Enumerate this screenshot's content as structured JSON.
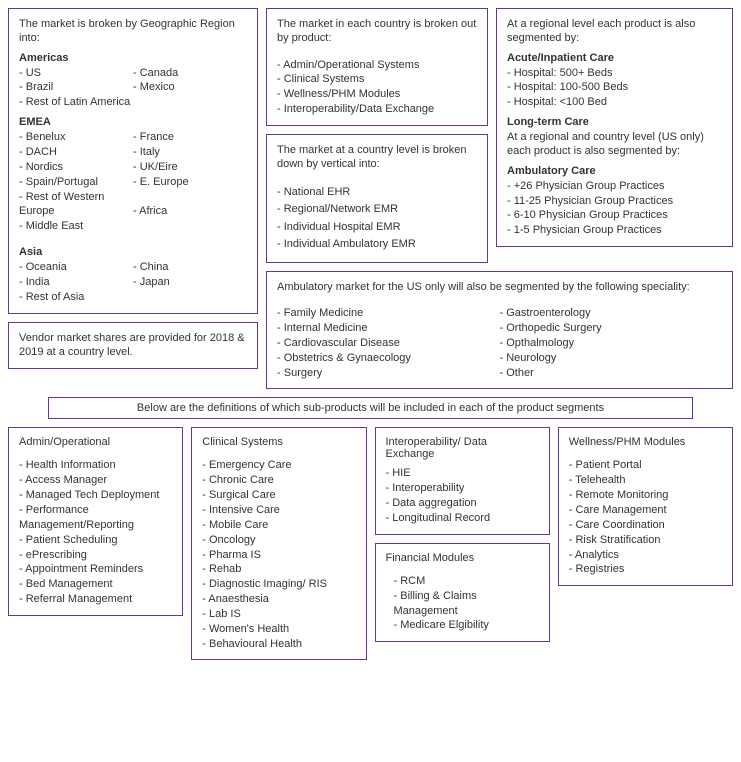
{
  "geo": {
    "heading": "The market is broken by Geographic Region into:",
    "americas_title": "Americas",
    "americas_left": [
      "US",
      "Brazil",
      "Rest of Latin America"
    ],
    "americas_right": [
      "Canada",
      "Mexico"
    ],
    "emea_title": "EMEA",
    "emea_left": [
      "Benelux",
      "DACH",
      "Nordics",
      "Spain/Portugal",
      "Rest of Western Europe",
      "Middle East"
    ],
    "emea_right": [
      "France",
      "Italy",
      "UK/Eire",
      "E. Europe",
      "",
      "Africa"
    ],
    "asia_title": "Asia",
    "asia_left": [
      "Oceania",
      "India",
      "Rest of Asia"
    ],
    "asia_right": [
      "China",
      "Japan"
    ]
  },
  "vendor_note": "Vendor market shares are provided for 2018 & 2019 at a country level.",
  "country_product": {
    "heading": "The market in each country is broken out by product:",
    "items": [
      "Admin/Operational Systems",
      "Clinical Systems",
      "Wellness/PHM Modules",
      "Interoperability/Data Exchange"
    ]
  },
  "country_vertical": {
    "heading": "The market at a country level is broken down by vertical into:",
    "items": [
      "National EHR",
      "Regional/Network EMR",
      "Individual Hospital EMR",
      "Individual Ambulatory EMR"
    ]
  },
  "regional": {
    "heading": "At a regional level each product is also segmented by:",
    "acute_title": "Acute/Inpatient Care",
    "acute_items": [
      "Hospital: 500+ Beds",
      "Hospital: 100-500 Beds",
      "Hospital: <100 Bed"
    ],
    "ltc_title": "Long-term Care",
    "ltc_note": "At a regional and country level (US only) each product is also segmented by:",
    "amb_title": "Ambulatory Care",
    "amb_items": [
      "+26 Physician Group Practices",
      "11-25 Physician Group Practices",
      "6-10 Physician Group Practices",
      "1-5 Physician Group Practices"
    ]
  },
  "speciality": {
    "heading": "Ambulatory market for the US only will also be segmented by the following speciality:",
    "left": [
      "Family Medicine",
      "Internal Medicine",
      "Cardiovascular Disease",
      "Obstetrics & Gynaecology",
      "Surgery"
    ],
    "right": [
      "Gastroenterology",
      "Orthopedic Surgery",
      "Opthalmology",
      "Neurology",
      "Other"
    ]
  },
  "banner": "Below are the definitions of which sub-products will be included in each of the product segments",
  "admin": {
    "title": "Admin/Operational",
    "items": [
      "Health Information",
      "Access Manager",
      "Managed Tech Deployment",
      "Performance Management/Reporting",
      "Patient Scheduling",
      "ePrescribing",
      "Appointment Reminders",
      "Bed Management",
      "Referral Management"
    ]
  },
  "clinical": {
    "title": "Clinical Systems",
    "items": [
      "Emergency Care",
      "Chronic Care",
      "Surgical Care",
      "Intensive Care",
      "Mobile Care",
      "Oncology",
      "Pharma IS",
      "Rehab",
      "Diagnostic Imaging/ RIS",
      "Anaesthesia",
      "Lab IS",
      "Women's Health",
      "Behavioural Health"
    ]
  },
  "interop": {
    "title": "Interoperability/ Data Exchange",
    "items": [
      "HIE",
      "Interoperability",
      "Data aggregation",
      "Longitudinal Record"
    ]
  },
  "financial": {
    "title": "Financial Modules",
    "items": [
      "RCM",
      "Billing & Claims Management",
      "Medicare Elgibility"
    ]
  },
  "wellness": {
    "title": "Wellness/PHM Modules",
    "items": [
      "Patient Portal",
      "Telehealth",
      "Remote Monitoring",
      "Care Management",
      "Care Coordination",
      "Risk Stratification",
      "Analytics",
      "Registries"
    ]
  }
}
